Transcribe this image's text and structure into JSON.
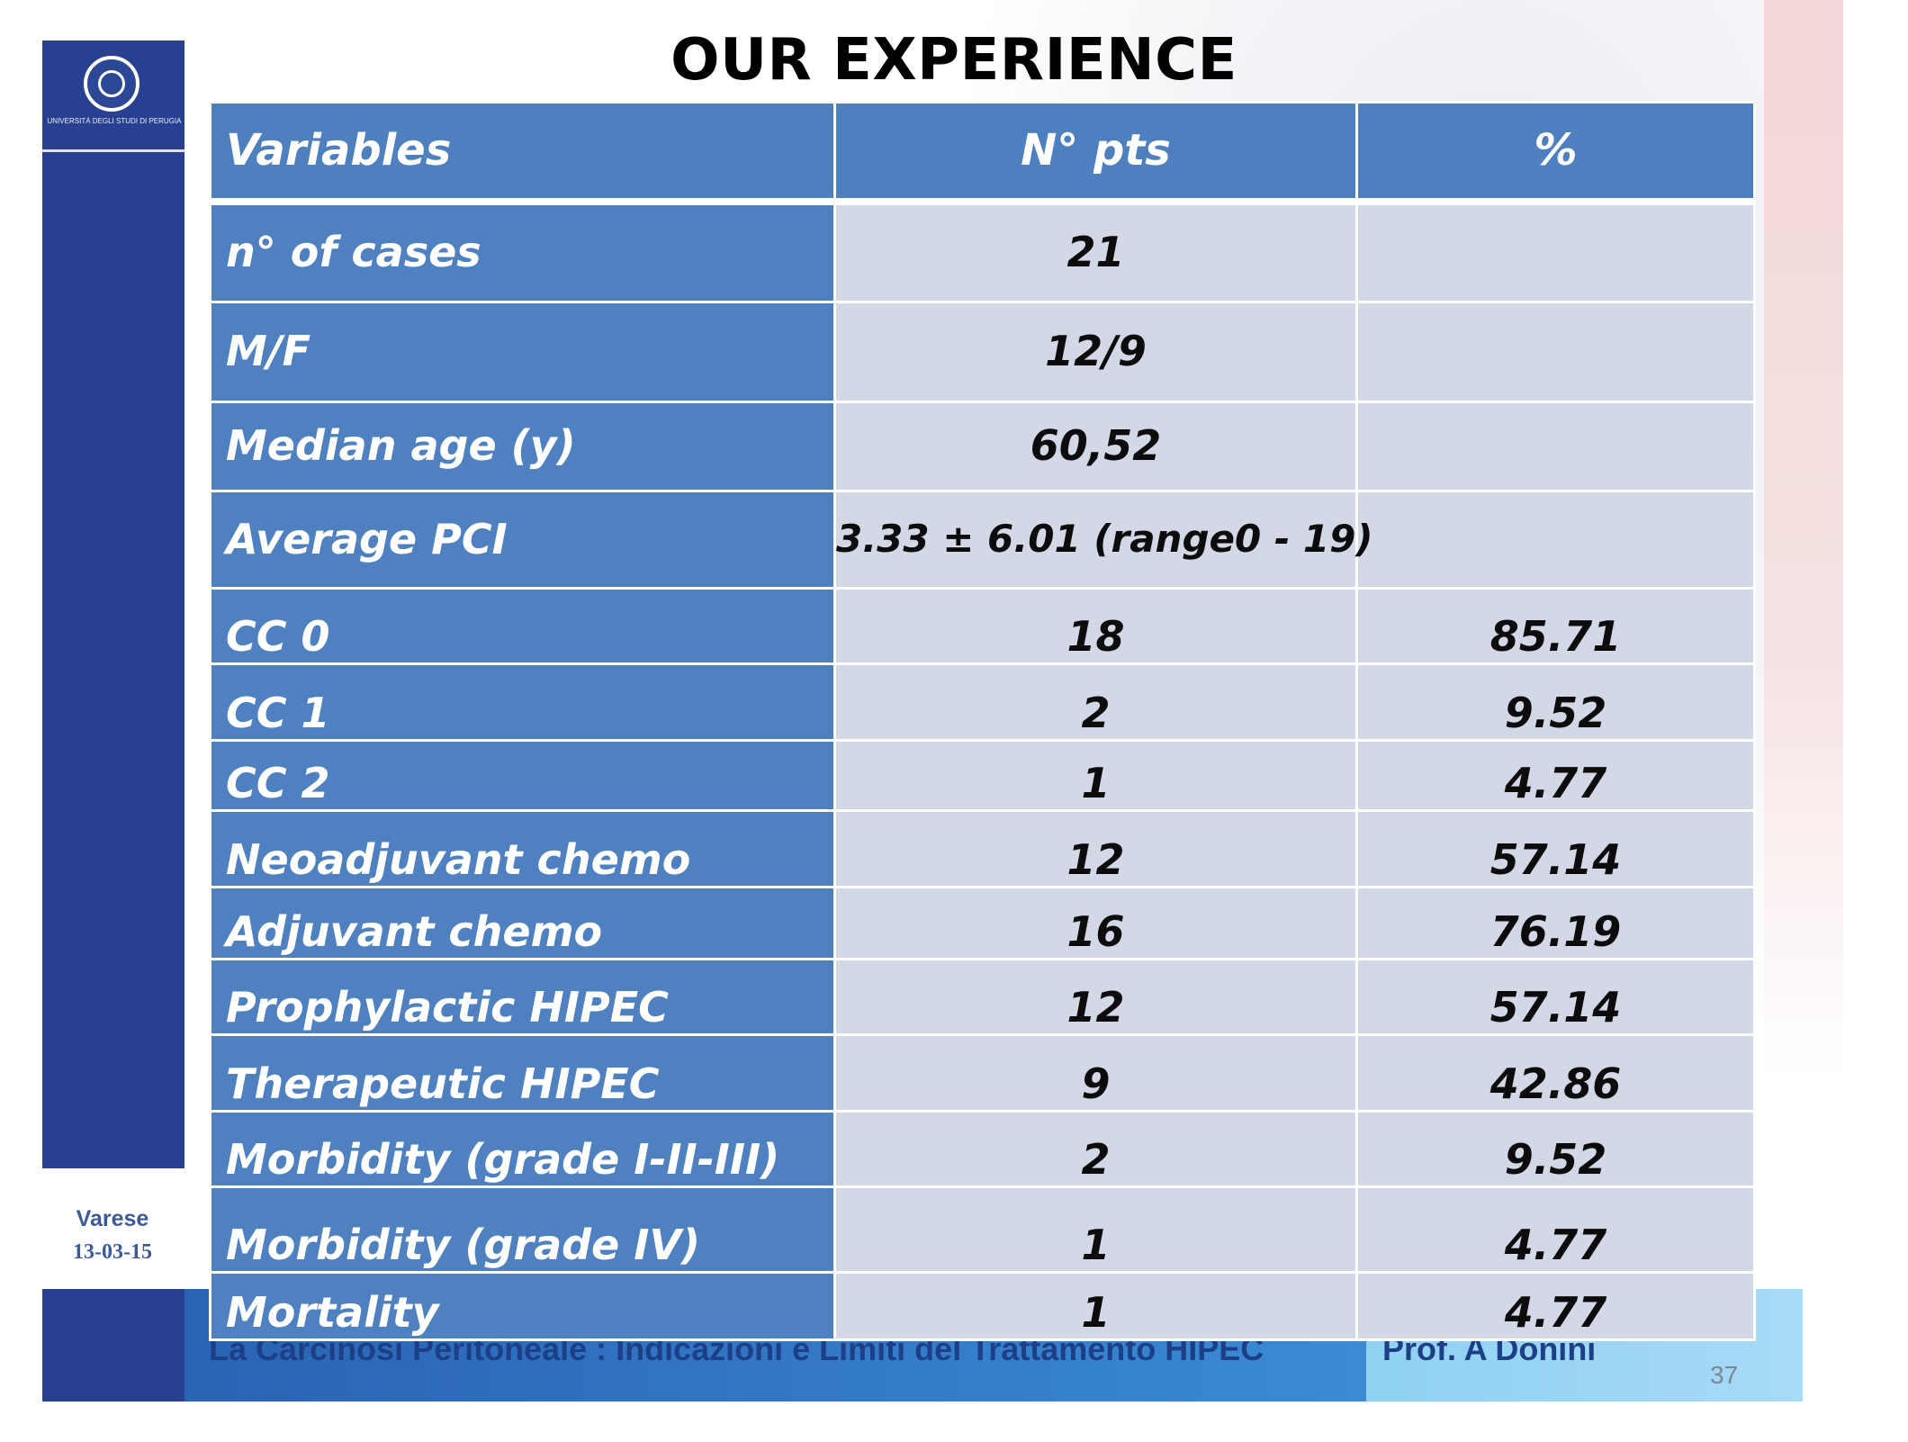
{
  "title": "OUR EXPERIENCE",
  "table": {
    "headers": [
      "Variables",
      "N° pts",
      "%"
    ],
    "rows": [
      {
        "variable": "n° of cases",
        "pts": "21",
        "pct": ""
      },
      {
        "variable": "M/F",
        "pts": "12/9",
        "pct": ""
      },
      {
        "variable": "Median age (y)",
        "pts": "60,52",
        "pct": ""
      },
      {
        "variable": "Average PCI",
        "pts": "3.33 ± 6.01 (range0 - 19)",
        "pct": ""
      },
      {
        "variable": "CC 0",
        "pts": "18",
        "pct": "85.71"
      },
      {
        "variable": "CC 1",
        "pts": "2",
        "pct": "9.52"
      },
      {
        "variable": "CC 2",
        "pts": "1",
        "pct": "4.77"
      },
      {
        "variable": "Neoadjuvant chemo",
        "pts": "12",
        "pct": "57.14"
      },
      {
        "variable": "Adjuvant chemo",
        "pts": "16",
        "pct": "76.19"
      },
      {
        "variable": "Prophylactic HIPEC",
        "pts": "12",
        "pct": "57.14"
      },
      {
        "variable": "Therapeutic HIPEC",
        "pts": "9",
        "pct": "42.86"
      },
      {
        "variable": "Morbidity (grade I-II-III)",
        "pts": "2",
        "pct": "9.52"
      },
      {
        "variable": "Morbidity (grade IV)",
        "pts": "1",
        "pct": "4.77"
      },
      {
        "variable": "Mortality",
        "pts": "1",
        "pct": "4.77"
      }
    ]
  },
  "sidebar": {
    "place": "Varese",
    "date": "13-03-15",
    "logo_text": "UNIVERSITÀ DEGLI STUDI DI PERUGIA"
  },
  "footer": {
    "title": "La Carcinosi Peritoneale : Indicazioni e Limiti del Trattamento HIPEC",
    "author": "Prof. A Donini",
    "page_number": "37"
  },
  "colors": {
    "header_blue": "#4e80c0",
    "variable_blue": "#4f81c1",
    "value_gray": "#d2d8e6",
    "sidebar_navy": "#28408f"
  }
}
